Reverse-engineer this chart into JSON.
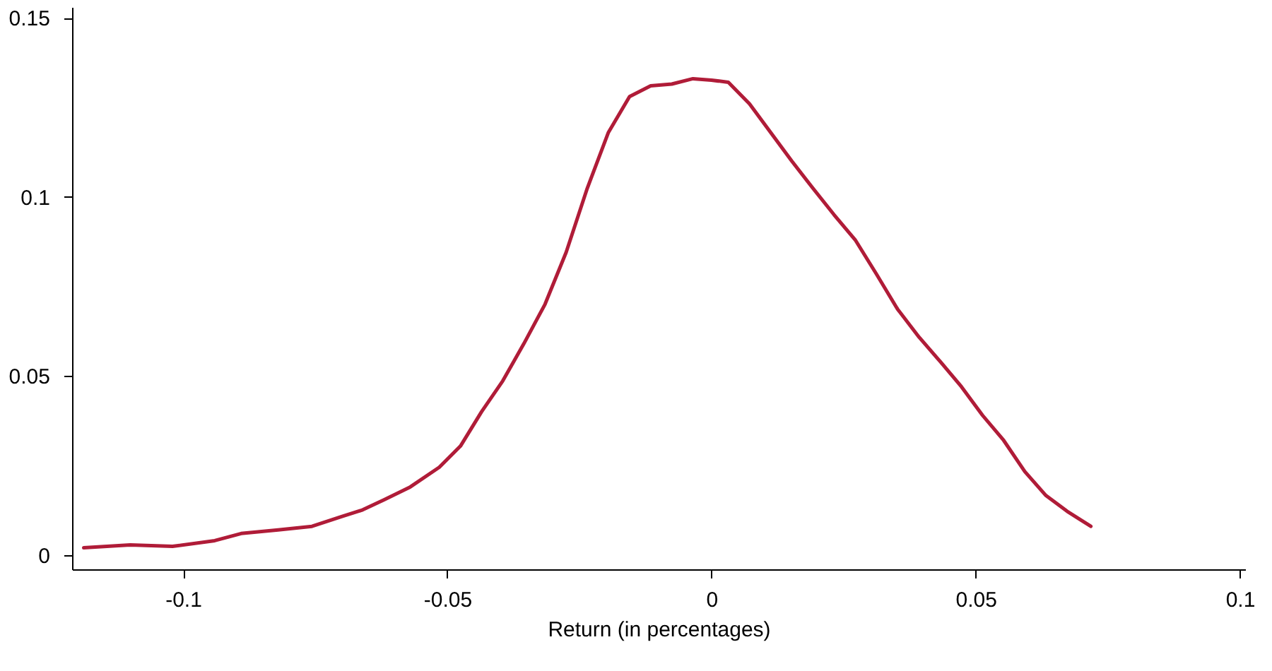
{
  "chart_data": {
    "type": "line",
    "xlabel": "Return (in percentages)",
    "xlim": [
      -0.121,
      0.101
    ],
    "xticks": [
      -0.1,
      -0.05,
      0,
      0.05,
      0.1
    ],
    "ylim": [
      -0.004,
      0.153
    ],
    "yticks": [
      0,
      0.05,
      0.1,
      0.15
    ],
    "grid": false,
    "marker": "none",
    "line_style": "solid",
    "series": [
      {
        "color": "#b01c38",
        "x": [
          -0.1188,
          -0.11,
          -0.102,
          -0.094,
          -0.089,
          -0.082,
          -0.0756,
          -0.07,
          -0.066,
          -0.062,
          -0.057,
          -0.0515,
          -0.0475,
          -0.0435,
          -0.0395,
          -0.0355,
          -0.0315,
          -0.0275,
          -0.0235,
          -0.0195,
          -0.0155,
          -0.0115,
          -0.0075,
          -0.0035,
          0,
          0.0032,
          0.0072,
          0.0112,
          0.0152,
          0.0192,
          0.0232,
          0.0272,
          0.0312,
          0.0352,
          0.0393,
          0.0433,
          0.0473,
          0.0513,
          0.0553,
          0.0593,
          0.0633,
          0.0673,
          0.0718
        ],
        "values": [
          0.002,
          0.0028,
          0.0024,
          0.004,
          0.006,
          0.007,
          0.008,
          0.0107,
          0.0126,
          0.0154,
          0.019,
          0.0245,
          0.0304,
          0.04,
          0.0486,
          0.059,
          0.07,
          0.0845,
          0.1024,
          0.118,
          0.128,
          0.131,
          0.1315,
          0.133,
          0.1326,
          0.132,
          0.126,
          0.118,
          0.11,
          0.1024,
          0.095,
          0.088,
          0.0785,
          0.0687,
          0.0608,
          0.054,
          0.047,
          0.039,
          0.032,
          0.0233,
          0.0166,
          0.0122,
          0.008
        ]
      }
    ]
  }
}
